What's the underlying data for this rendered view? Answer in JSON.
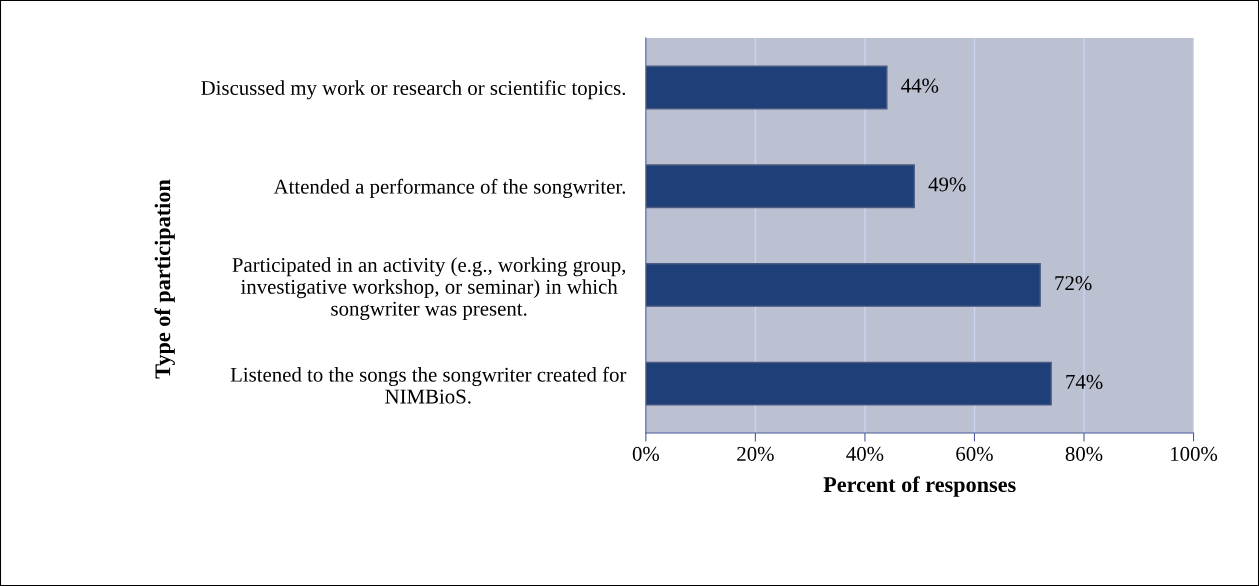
{
  "chart_data": {
    "type": "bar",
    "orientation": "horizontal",
    "xlabel": "Percent of responses",
    "ylabel": "Type of participation",
    "categories": [
      "Discussed my work or research or scientific topics.",
      "Attended a performance of the songwriter.",
      "Participated in an activity (e.g., working group,\ninvestigative workshop, or seminar) in which\nsongwriter was present.",
      "Listened to the songs the songwriter created for\nNIMBioS."
    ],
    "values": [
      44,
      49,
      72,
      74
    ],
    "value_labels": [
      "44%",
      "49%",
      "72%",
      "74%"
    ],
    "color": "#1f3f78",
    "xlim": [
      0,
      100
    ],
    "xticks": [
      {
        "value": 0,
        "label": "0%"
      },
      {
        "value": 20,
        "label": "20%"
      },
      {
        "value": 40,
        "label": "40%"
      },
      {
        "value": 60,
        "label": "60%"
      },
      {
        "value": 80,
        "label": "80%"
      },
      {
        "value": 100,
        "label": "100%"
      }
    ],
    "grid": "x",
    "legend": false
  }
}
